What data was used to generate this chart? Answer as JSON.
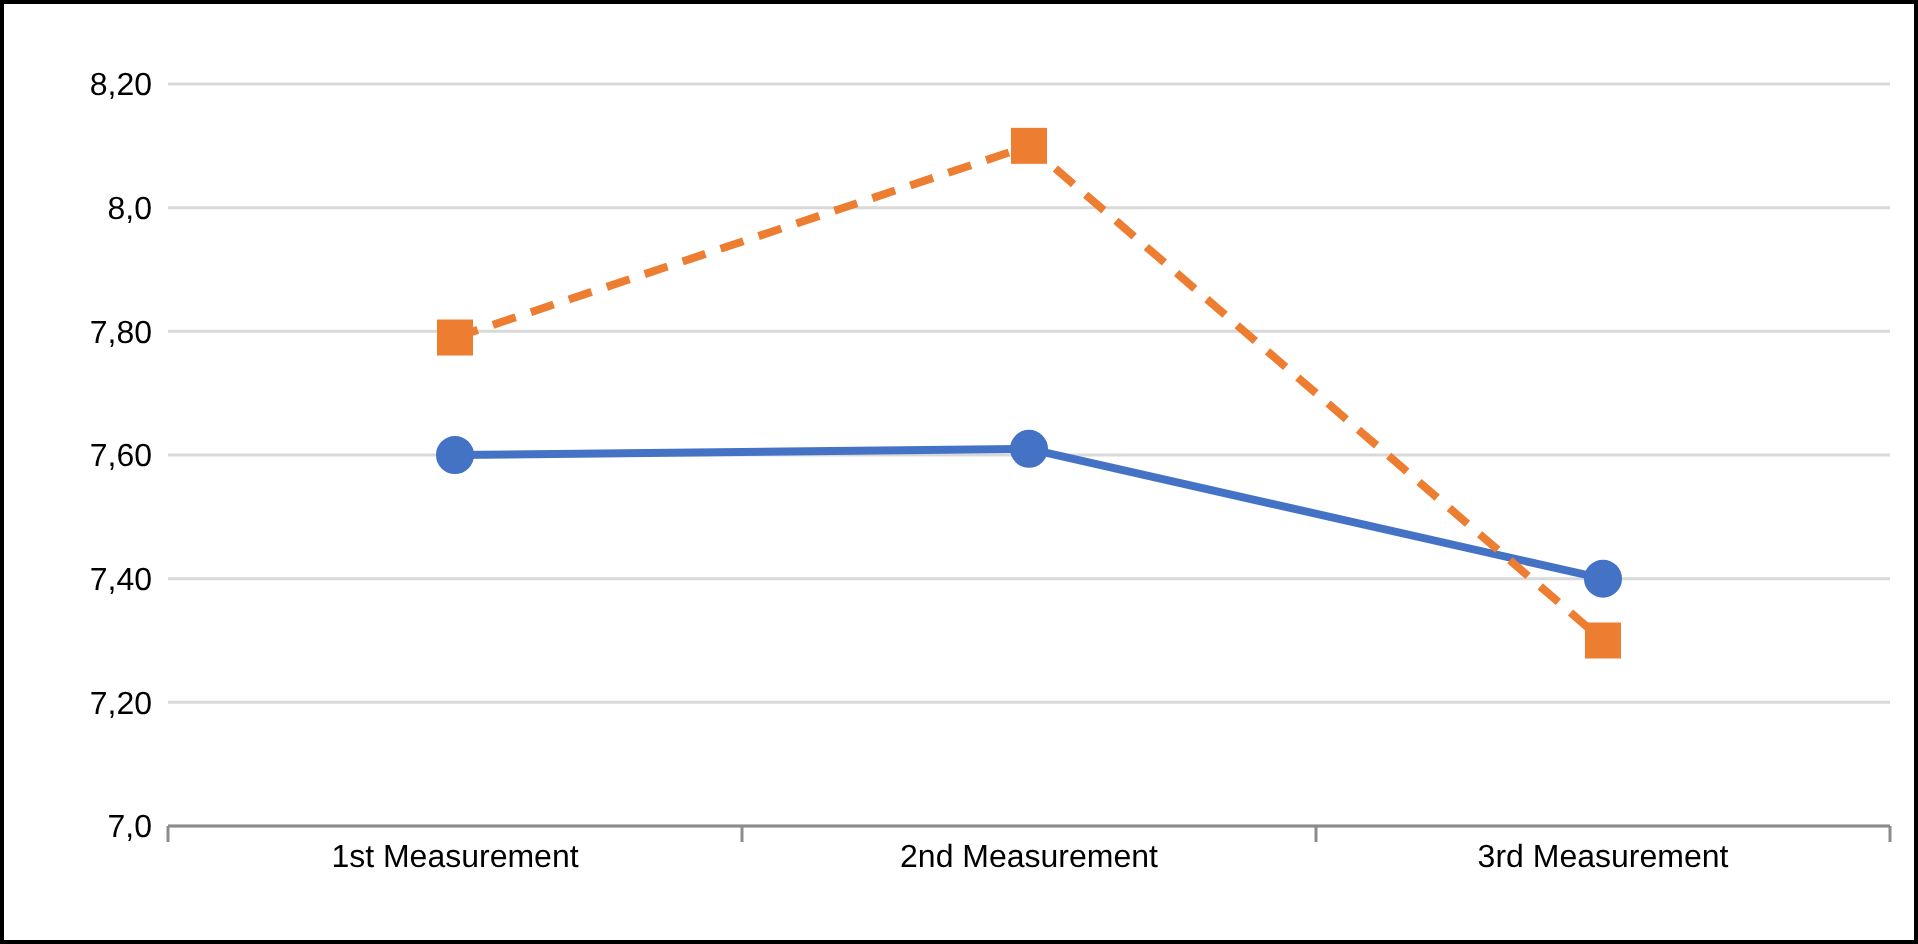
{
  "chart_data": {
    "type": "line",
    "categories": [
      "1st Measurement",
      "2nd Measurement",
      "3rd Measurement"
    ],
    "series": [
      {
        "color": "#4472c4",
        "values": [
          7.6,
          7.61,
          7.4
        ],
        "marker": "circle",
        "line_style": "solid"
      },
      {
        "color": "#ed7d31",
        "values": [
          7.79,
          8.1,
          7.3
        ],
        "marker": "square",
        "line_style": "dashed"
      }
    ],
    "ylim": [
      7.0,
      8.2
    ],
    "yticks": [
      {
        "value": 7.0,
        "label": "7,0"
      },
      {
        "value": 7.2,
        "label": "7,20"
      },
      {
        "value": 7.4,
        "label": "7,40"
      },
      {
        "value": 7.6,
        "label": "7,60"
      },
      {
        "value": 7.8,
        "label": "7,80"
      },
      {
        "value": 8.0,
        "label": "8,0"
      },
      {
        "value": 8.2,
        "label": "8,20"
      }
    ],
    "grid": "y",
    "legend": false
  }
}
